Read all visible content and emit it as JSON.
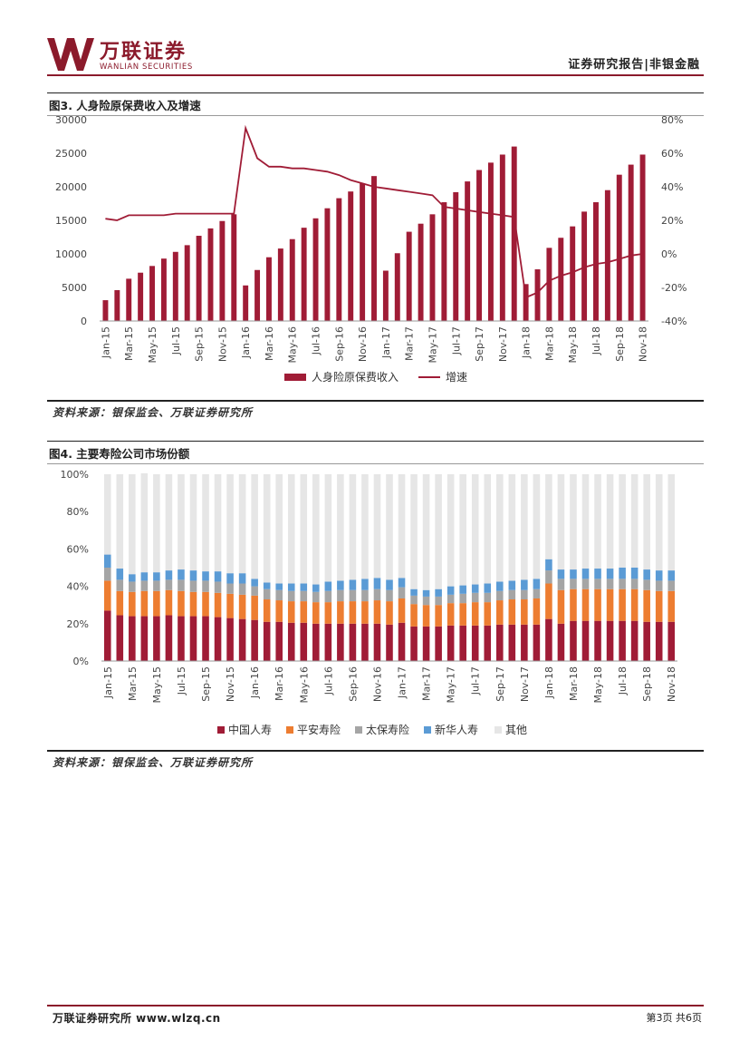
{
  "header": {
    "logo_text": "万联证券",
    "logo_sub": "WANLIAN SECURITIES",
    "report_type": "证券研究报告|非银金融",
    "brand_color": "#8b1a2b"
  },
  "figure3": {
    "title": "图3. 人身险原保费收入及增速",
    "source": "资料来源：银保监会、万联证券研究所"
  },
  "figure4": {
    "title": "图4. 主要寿险公司市场份额",
    "source": "资料来源：银保监会、万联证券研究所"
  },
  "footer": {
    "left": "万联证券研究所 www.wlzq.cn",
    "right": "第3页 共6页"
  },
  "chart_data": [
    {
      "type": "bar+line",
      "title": "图3. 人身险原保费收入及增速",
      "months": [
        "Jan-15",
        "Feb-15",
        "Mar-15",
        "Apr-15",
        "May-15",
        "Jun-15",
        "Jul-15",
        "Aug-15",
        "Sep-15",
        "Oct-15",
        "Nov-15",
        "Dec-15",
        "Jan-16",
        "Feb-16",
        "Mar-16",
        "Apr-16",
        "May-16",
        "Jun-16",
        "Jul-16",
        "Aug-16",
        "Sep-16",
        "Oct-16",
        "Nov-16",
        "Dec-16",
        "Jan-17",
        "Feb-17",
        "Mar-17",
        "Apr-17",
        "May-17",
        "Jun-17",
        "Jul-17",
        "Aug-17",
        "Sep-17",
        "Oct-17",
        "Nov-17",
        "Dec-17",
        "Jan-18",
        "Feb-18",
        "Mar-18",
        "Apr-18",
        "May-18",
        "Jun-18",
        "Jul-18",
        "Aug-18",
        "Sep-18",
        "Oct-18",
        "Nov-18"
      ],
      "tick_labels": [
        "Jan-15",
        "Mar-15",
        "May-15",
        "Jul-15",
        "Sep-15",
        "Nov-15",
        "Jan-16",
        "Mar-16",
        "May-16",
        "Jul-16",
        "Sep-16",
        "Nov-16",
        "Jan-17",
        "Mar-17",
        "May-17",
        "Jul-17",
        "Sep-17",
        "Nov-17",
        "Jan-18",
        "Mar-18",
        "May-18",
        "Jul-18",
        "Sep-18",
        "Nov-18"
      ],
      "series": [
        {
          "name": "人身险原保费收入",
          "axis": "left",
          "color": "#a01c36",
          "values": [
            3100,
            4600,
            6300,
            7200,
            8200,
            9300,
            10300,
            11300,
            12700,
            13800,
            14900,
            15900,
            5300,
            7600,
            9500,
            10800,
            12200,
            13900,
            15300,
            16800,
            18300,
            19300,
            20500,
            21600,
            7500,
            10100,
            13300,
            14500,
            15900,
            17700,
            19200,
            20800,
            22500,
            23600,
            24800,
            26000,
            5500,
            7700,
            10900,
            12400,
            14100,
            16300,
            17700,
            19500,
            21800,
            23300,
            24800
          ]
        },
        {
          "name": "增速",
          "axis": "right",
          "color": "#a01c36",
          "values": [
            21,
            20,
            23,
            23,
            23,
            23,
            24,
            24,
            24,
            24,
            24,
            24,
            75,
            57,
            52,
            52,
            51,
            51,
            50,
            49,
            47,
            44,
            42,
            40,
            39,
            38,
            37,
            36,
            35,
            28,
            27,
            26,
            25,
            24,
            23,
            22,
            -26,
            -23,
            -16,
            -13,
            -11,
            -8,
            -6,
            -5,
            -3,
            -1,
            0
          ]
        }
      ],
      "ylim_left": [
        0,
        30000
      ],
      "yticks_left": [
        "30000",
        "25000",
        "20000",
        "15000",
        "10000",
        "5000",
        "0"
      ],
      "ylim_right": [
        -40,
        80
      ],
      "yticks_right": [
        "80%",
        "60%",
        "40%",
        "20%",
        "0%",
        "-20%",
        "-40%"
      ],
      "legend": [
        "人身险原保费收入",
        "增速"
      ]
    },
    {
      "type": "stacked-bar",
      "title": "图4. 主要寿险公司市场份额",
      "tick_labels": [
        "Jan-15",
        "Mar-15",
        "May-15",
        "Jul-15",
        "Sep-15",
        "Nov-15",
        "Jan-16",
        "Mar-16",
        "May-16",
        "Jul-16",
        "Sep-16",
        "Nov-16",
        "Jan-17",
        "Mar-17",
        "May-17",
        "Jul-17",
        "Sep-17",
        "Nov-17",
        "Jan-18",
        "Mar-18",
        "May-18",
        "Jul-18",
        "Sep-18",
        "Nov-18"
      ],
      "series": [
        {
          "name": "中国人寿",
          "color": "#a01c36",
          "values": [
            27,
            24.5,
            24,
            24,
            24,
            24.5,
            24,
            24,
            24,
            23.5,
            23,
            22.5,
            22,
            21,
            21,
            20.5,
            20.5,
            20,
            20,
            20,
            20,
            20,
            20,
            19.5,
            20.5,
            18.5,
            18.5,
            18.5,
            19,
            19,
            19,
            19,
            19.5,
            19.5,
            19.5,
            19.5,
            22.5,
            20,
            21.5,
            21.5,
            21.5,
            21.5,
            21.5,
            21.5,
            21,
            21,
            21
          ]
        },
        {
          "name": "平安寿险",
          "color": "#ed7d31",
          "values": [
            16,
            13,
            13,
            13.5,
            13.5,
            13.5,
            13.5,
            13,
            13,
            13,
            13,
            13,
            13,
            12,
            11.5,
            11.5,
            11.5,
            11.5,
            11.5,
            12,
            12,
            12,
            12.5,
            12.5,
            13,
            12,
            11.5,
            11.5,
            12,
            12,
            12.5,
            12.5,
            13,
            13.5,
            13.5,
            14,
            19,
            18,
            17,
            17,
            17,
            17,
            17,
            17,
            17,
            16.5,
            16.5
          ]
        },
        {
          "name": "太保寿险",
          "color": "#a5a5a5",
          "values": [
            7,
            6,
            5.5,
            5.5,
            5.5,
            5.5,
            6,
            6,
            6,
            6,
            5.5,
            6,
            5,
            5.5,
            5.5,
            5.5,
            5.5,
            5.5,
            6,
            6,
            6,
            6,
            6,
            6,
            6,
            4.5,
            4.5,
            4.5,
            4.5,
            5,
            5,
            5,
            5,
            5,
            5,
            5,
            7,
            6,
            5.5,
            5.5,
            5.5,
            5.5,
            5.5,
            5.5,
            5.5,
            5.5,
            5.5
          ]
        },
        {
          "name": "新华人寿",
          "color": "#5b9bd5",
          "values": [
            7,
            6,
            4,
            4.5,
            4.5,
            5,
            5.5,
            5.5,
            5,
            5.5,
            5.5,
            5.5,
            4,
            3.5,
            3.5,
            4,
            4,
            4,
            5,
            5,
            5.5,
            6,
            6,
            5.5,
            5,
            3.5,
            3.5,
            4,
            4.5,
            4.5,
            4.5,
            5,
            5,
            5,
            5.5,
            5.5,
            6,
            5,
            5,
            5.5,
            5.5,
            5.5,
            6,
            6,
            5.5,
            5.5,
            5.5
          ]
        },
        {
          "name": "其他",
          "color": "#e6e6e6",
          "values": [
            43,
            50.5,
            53.5,
            53,
            52.5,
            51.5,
            51,
            51.5,
            52,
            52,
            53,
            53,
            56,
            58,
            58.5,
            58.5,
            58.5,
            59,
            57.5,
            57,
            56.5,
            56,
            55.5,
            56.5,
            55.5,
            61.5,
            62,
            61.5,
            60,
            59.5,
            59,
            58.5,
            57.5,
            57,
            56.5,
            56,
            45.5,
            51,
            51,
            50.5,
            50.5,
            50.5,
            50,
            50,
            51,
            51.5,
            51.5
          ]
        }
      ],
      "ylim": [
        0,
        100
      ],
      "yticks": [
        "100%",
        "80%",
        "60%",
        "40%",
        "20%",
        "0%"
      ],
      "legend": [
        "中国人寿",
        "平安寿险",
        "太保寿险",
        "新华人寿",
        "其他"
      ]
    }
  ]
}
